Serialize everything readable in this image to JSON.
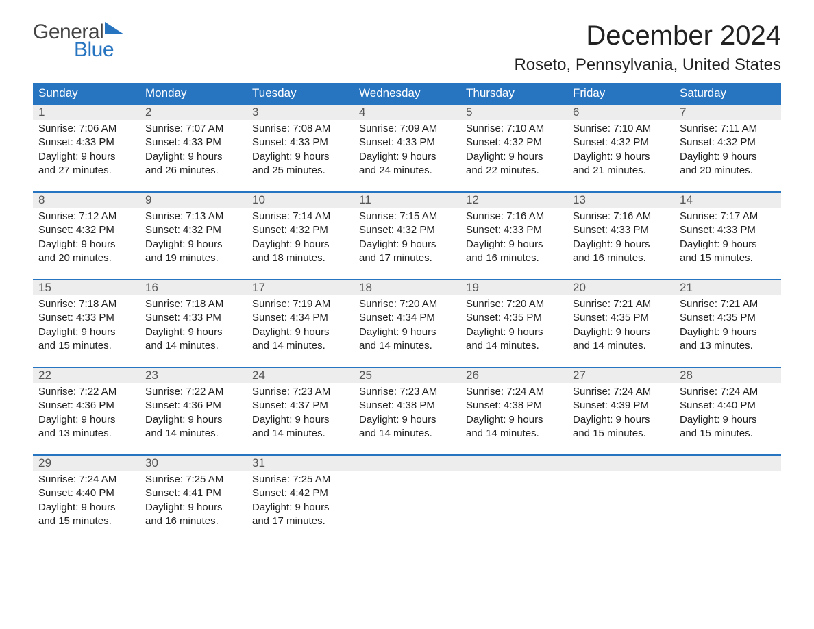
{
  "logo": {
    "text1": "General",
    "text2": "Blue",
    "color1": "#444444",
    "color2": "#2774c1",
    "flag_color": "#2774c1"
  },
  "title": "December 2024",
  "location": "Roseto, Pennsylvania, United States",
  "colors": {
    "header_bg": "#2774c1",
    "header_text": "#ffffff",
    "daynum_bg": "#ededed",
    "daynum_text": "#555555",
    "body_text": "#222222",
    "week_border": "#2774c1",
    "page_bg": "#ffffff"
  },
  "typography": {
    "title_fontsize": 40,
    "location_fontsize": 24,
    "weekday_fontsize": 17,
    "daynum_fontsize": 17,
    "content_fontsize": 15
  },
  "weekdays": [
    "Sunday",
    "Monday",
    "Tuesday",
    "Wednesday",
    "Thursday",
    "Friday",
    "Saturday"
  ],
  "weeks": [
    [
      {
        "num": "1",
        "sunrise": "Sunrise: 7:06 AM",
        "sunset": "Sunset: 4:33 PM",
        "day1": "Daylight: 9 hours",
        "day2": "and 27 minutes."
      },
      {
        "num": "2",
        "sunrise": "Sunrise: 7:07 AM",
        "sunset": "Sunset: 4:33 PM",
        "day1": "Daylight: 9 hours",
        "day2": "and 26 minutes."
      },
      {
        "num": "3",
        "sunrise": "Sunrise: 7:08 AM",
        "sunset": "Sunset: 4:33 PM",
        "day1": "Daylight: 9 hours",
        "day2": "and 25 minutes."
      },
      {
        "num": "4",
        "sunrise": "Sunrise: 7:09 AM",
        "sunset": "Sunset: 4:33 PM",
        "day1": "Daylight: 9 hours",
        "day2": "and 24 minutes."
      },
      {
        "num": "5",
        "sunrise": "Sunrise: 7:10 AM",
        "sunset": "Sunset: 4:32 PM",
        "day1": "Daylight: 9 hours",
        "day2": "and 22 minutes."
      },
      {
        "num": "6",
        "sunrise": "Sunrise: 7:10 AM",
        "sunset": "Sunset: 4:32 PM",
        "day1": "Daylight: 9 hours",
        "day2": "and 21 minutes."
      },
      {
        "num": "7",
        "sunrise": "Sunrise: 7:11 AM",
        "sunset": "Sunset: 4:32 PM",
        "day1": "Daylight: 9 hours",
        "day2": "and 20 minutes."
      }
    ],
    [
      {
        "num": "8",
        "sunrise": "Sunrise: 7:12 AM",
        "sunset": "Sunset: 4:32 PM",
        "day1": "Daylight: 9 hours",
        "day2": "and 20 minutes."
      },
      {
        "num": "9",
        "sunrise": "Sunrise: 7:13 AM",
        "sunset": "Sunset: 4:32 PM",
        "day1": "Daylight: 9 hours",
        "day2": "and 19 minutes."
      },
      {
        "num": "10",
        "sunrise": "Sunrise: 7:14 AM",
        "sunset": "Sunset: 4:32 PM",
        "day1": "Daylight: 9 hours",
        "day2": "and 18 minutes."
      },
      {
        "num": "11",
        "sunrise": "Sunrise: 7:15 AM",
        "sunset": "Sunset: 4:32 PM",
        "day1": "Daylight: 9 hours",
        "day2": "and 17 minutes."
      },
      {
        "num": "12",
        "sunrise": "Sunrise: 7:16 AM",
        "sunset": "Sunset: 4:33 PM",
        "day1": "Daylight: 9 hours",
        "day2": "and 16 minutes."
      },
      {
        "num": "13",
        "sunrise": "Sunrise: 7:16 AM",
        "sunset": "Sunset: 4:33 PM",
        "day1": "Daylight: 9 hours",
        "day2": "and 16 minutes."
      },
      {
        "num": "14",
        "sunrise": "Sunrise: 7:17 AM",
        "sunset": "Sunset: 4:33 PM",
        "day1": "Daylight: 9 hours",
        "day2": "and 15 minutes."
      }
    ],
    [
      {
        "num": "15",
        "sunrise": "Sunrise: 7:18 AM",
        "sunset": "Sunset: 4:33 PM",
        "day1": "Daylight: 9 hours",
        "day2": "and 15 minutes."
      },
      {
        "num": "16",
        "sunrise": "Sunrise: 7:18 AM",
        "sunset": "Sunset: 4:33 PM",
        "day1": "Daylight: 9 hours",
        "day2": "and 14 minutes."
      },
      {
        "num": "17",
        "sunrise": "Sunrise: 7:19 AM",
        "sunset": "Sunset: 4:34 PM",
        "day1": "Daylight: 9 hours",
        "day2": "and 14 minutes."
      },
      {
        "num": "18",
        "sunrise": "Sunrise: 7:20 AM",
        "sunset": "Sunset: 4:34 PM",
        "day1": "Daylight: 9 hours",
        "day2": "and 14 minutes."
      },
      {
        "num": "19",
        "sunrise": "Sunrise: 7:20 AM",
        "sunset": "Sunset: 4:35 PM",
        "day1": "Daylight: 9 hours",
        "day2": "and 14 minutes."
      },
      {
        "num": "20",
        "sunrise": "Sunrise: 7:21 AM",
        "sunset": "Sunset: 4:35 PM",
        "day1": "Daylight: 9 hours",
        "day2": "and 14 minutes."
      },
      {
        "num": "21",
        "sunrise": "Sunrise: 7:21 AM",
        "sunset": "Sunset: 4:35 PM",
        "day1": "Daylight: 9 hours",
        "day2": "and 13 minutes."
      }
    ],
    [
      {
        "num": "22",
        "sunrise": "Sunrise: 7:22 AM",
        "sunset": "Sunset: 4:36 PM",
        "day1": "Daylight: 9 hours",
        "day2": "and 13 minutes."
      },
      {
        "num": "23",
        "sunrise": "Sunrise: 7:22 AM",
        "sunset": "Sunset: 4:36 PM",
        "day1": "Daylight: 9 hours",
        "day2": "and 14 minutes."
      },
      {
        "num": "24",
        "sunrise": "Sunrise: 7:23 AM",
        "sunset": "Sunset: 4:37 PM",
        "day1": "Daylight: 9 hours",
        "day2": "and 14 minutes."
      },
      {
        "num": "25",
        "sunrise": "Sunrise: 7:23 AM",
        "sunset": "Sunset: 4:38 PM",
        "day1": "Daylight: 9 hours",
        "day2": "and 14 minutes."
      },
      {
        "num": "26",
        "sunrise": "Sunrise: 7:24 AM",
        "sunset": "Sunset: 4:38 PM",
        "day1": "Daylight: 9 hours",
        "day2": "and 14 minutes."
      },
      {
        "num": "27",
        "sunrise": "Sunrise: 7:24 AM",
        "sunset": "Sunset: 4:39 PM",
        "day1": "Daylight: 9 hours",
        "day2": "and 15 minutes."
      },
      {
        "num": "28",
        "sunrise": "Sunrise: 7:24 AM",
        "sunset": "Sunset: 4:40 PM",
        "day1": "Daylight: 9 hours",
        "day2": "and 15 minutes."
      }
    ],
    [
      {
        "num": "29",
        "sunrise": "Sunrise: 7:24 AM",
        "sunset": "Sunset: 4:40 PM",
        "day1": "Daylight: 9 hours",
        "day2": "and 15 minutes."
      },
      {
        "num": "30",
        "sunrise": "Sunrise: 7:25 AM",
        "sunset": "Sunset: 4:41 PM",
        "day1": "Daylight: 9 hours",
        "day2": "and 16 minutes."
      },
      {
        "num": "31",
        "sunrise": "Sunrise: 7:25 AM",
        "sunset": "Sunset: 4:42 PM",
        "day1": "Daylight: 9 hours",
        "day2": "and 17 minutes."
      },
      {
        "empty": true
      },
      {
        "empty": true
      },
      {
        "empty": true
      },
      {
        "empty": true
      }
    ]
  ]
}
